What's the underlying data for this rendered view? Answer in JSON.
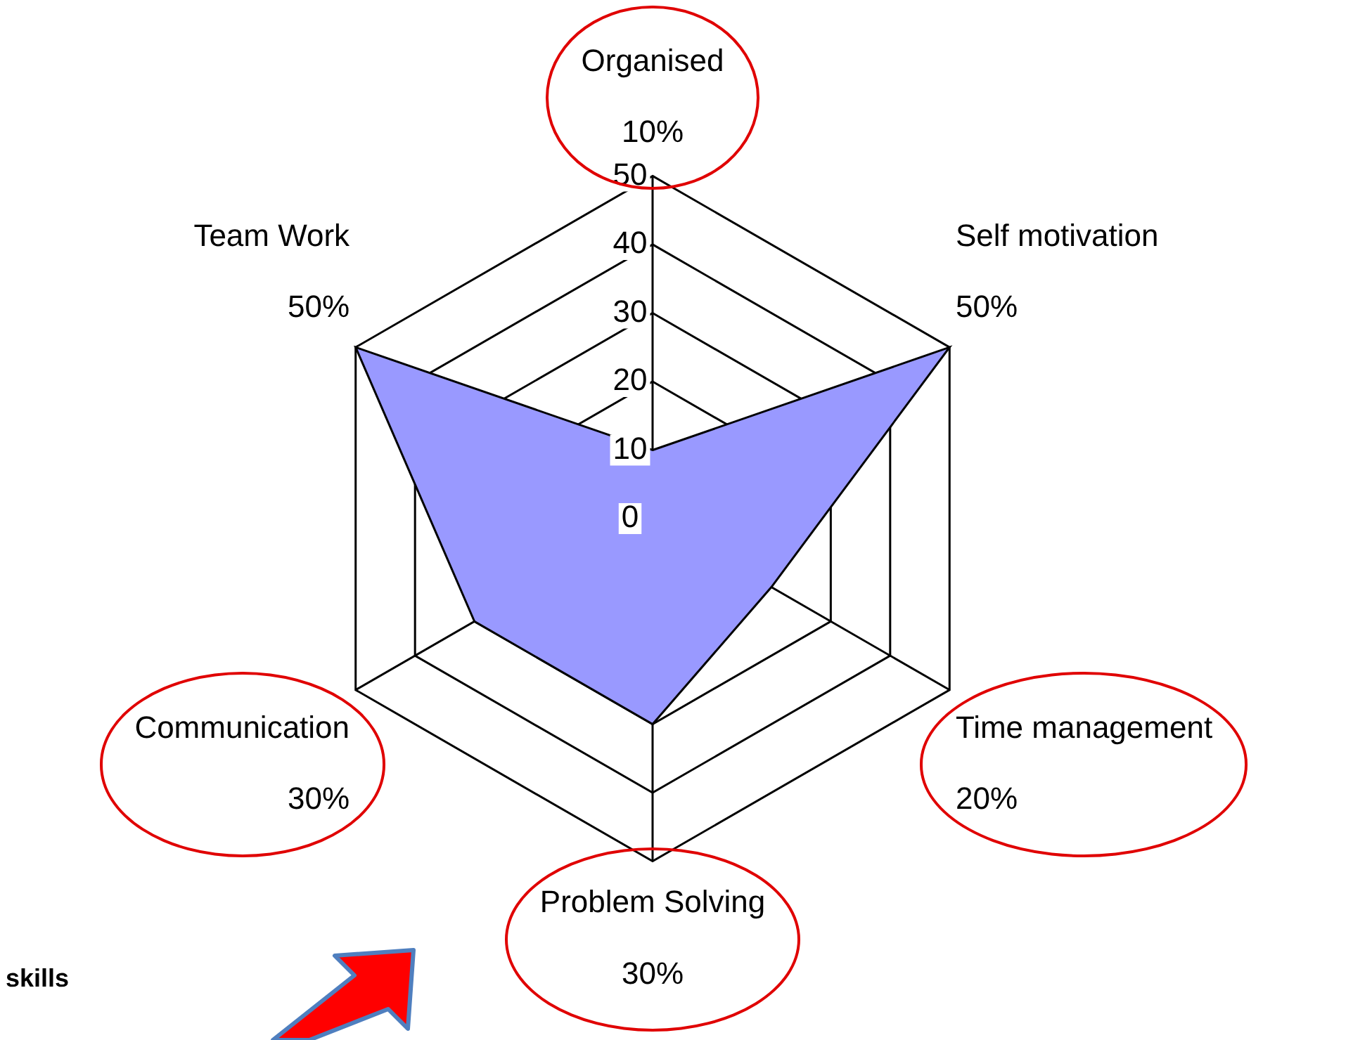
{
  "chart_data": {
    "type": "radar",
    "categories": [
      "Organised",
      "Self motivation",
      "Time management",
      "Problem Solving",
      "Communication",
      "Team Work"
    ],
    "series": [
      {
        "color": "#9999ff",
        "values": [
          10,
          50,
          20,
          30,
          30,
          50
        ]
      }
    ],
    "ylim": [
      0,
      50
    ],
    "yticks": [
      0,
      10,
      20,
      30,
      40,
      50
    ],
    "grid": true,
    "legend": false,
    "annotations": [
      "10%",
      "50%",
      "20%",
      "30%",
      "30%",
      "50%",
      "skills"
    ]
  }
}
